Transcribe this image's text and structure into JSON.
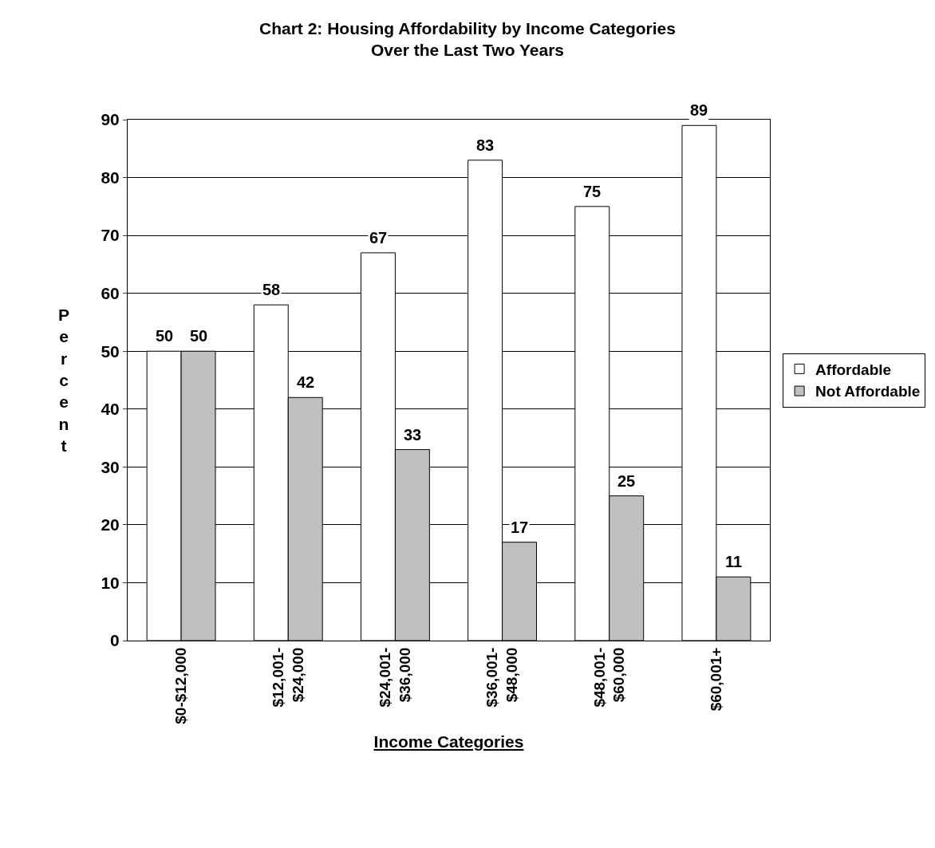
{
  "chart_data": {
    "type": "bar",
    "title": "Chart 2: Housing Affordability by Income Categories\nOver the Last Two Years",
    "xlabel": "Income Categories",
    "ylabel": "Percent",
    "categories": [
      "$0-$12,000",
      "$12,001-\n$24,000",
      "$24,001-\n$36,000",
      "$36,001-\n$48,000",
      "$48,001-\n$60,000",
      "$60,001+"
    ],
    "series": [
      {
        "name": "Affordable",
        "color": "#ffffff",
        "values": [
          50,
          58,
          67,
          83,
          75,
          89
        ]
      },
      {
        "name": "Not Affordable",
        "color": "#c0c0c0",
        "values": [
          50,
          42,
          33,
          17,
          25,
          11
        ]
      }
    ],
    "ylim": [
      0,
      90
    ],
    "yticks": [
      0,
      10,
      20,
      30,
      40,
      50,
      60,
      70,
      80,
      90
    ],
    "grid": "y",
    "legend": "right",
    "data_labels": true
  }
}
